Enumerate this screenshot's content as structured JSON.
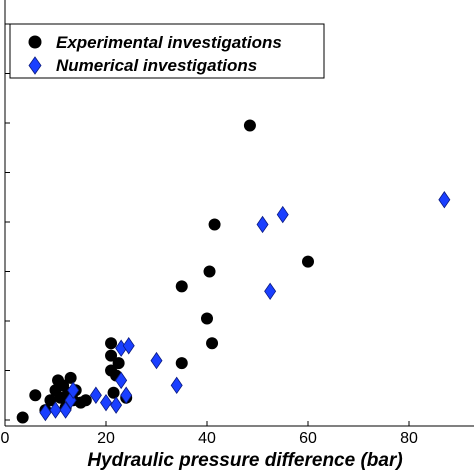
{
  "chart_data": {
    "type": "scatter",
    "xlabel": "Hydraulic pressure difference (bar)",
    "ylabel": "",
    "xlim": [
      0,
      92
    ],
    "ylim": [
      0,
      8.5
    ],
    "x_ticks": [
      0,
      20,
      40,
      60,
      80
    ],
    "y_ticks": [
      0,
      1,
      2,
      3,
      4,
      5,
      6,
      7,
      8
    ],
    "grid": false,
    "legend_position": "top-left",
    "series": [
      {
        "name": "Experimental investigations",
        "marker": "circle",
        "color": "#000000",
        "points": [
          [
            3.5,
            0.05
          ],
          [
            6,
            0.5
          ],
          [
            8,
            0.2
          ],
          [
            9,
            0.4
          ],
          [
            10,
            0.6
          ],
          [
            10.5,
            0.8
          ],
          [
            11,
            0.45
          ],
          [
            11.5,
            0.7
          ],
          [
            12,
            0.25
          ],
          [
            12.5,
            0.55
          ],
          [
            13,
            0.85
          ],
          [
            13.5,
            0.4
          ],
          [
            14,
            0.6
          ],
          [
            15,
            0.35
          ],
          [
            16,
            0.4
          ],
          [
            21,
            1.0
          ],
          [
            21,
            1.3
          ],
          [
            21,
            1.55
          ],
          [
            21.5,
            0.55
          ],
          [
            22,
            0.9
          ],
          [
            22.5,
            1.15
          ],
          [
            24,
            0.45
          ],
          [
            35,
            1.15
          ],
          [
            35,
            2.7
          ],
          [
            40,
            2.05
          ],
          [
            40.5,
            3.0
          ],
          [
            41,
            1.55
          ],
          [
            41.5,
            3.95
          ],
          [
            48.5,
            5.95
          ],
          [
            60,
            3.2
          ]
        ]
      },
      {
        "name": "Numerical investigations",
        "marker": "diamond",
        "color": "#1a3fff",
        "points": [
          [
            8,
            0.15
          ],
          [
            10,
            0.2
          ],
          [
            12,
            0.2
          ],
          [
            13,
            0.4
          ],
          [
            13.5,
            0.6
          ],
          [
            18,
            0.5
          ],
          [
            20,
            0.35
          ],
          [
            22,
            0.3
          ],
          [
            23,
            0.8
          ],
          [
            23,
            1.45
          ],
          [
            24,
            0.5
          ],
          [
            24.5,
            1.5
          ],
          [
            30,
            1.2
          ],
          [
            34,
            0.7
          ],
          [
            51,
            3.95
          ],
          [
            52.5,
            2.6
          ],
          [
            55,
            4.15
          ],
          [
            87,
            4.45
          ]
        ]
      }
    ]
  }
}
